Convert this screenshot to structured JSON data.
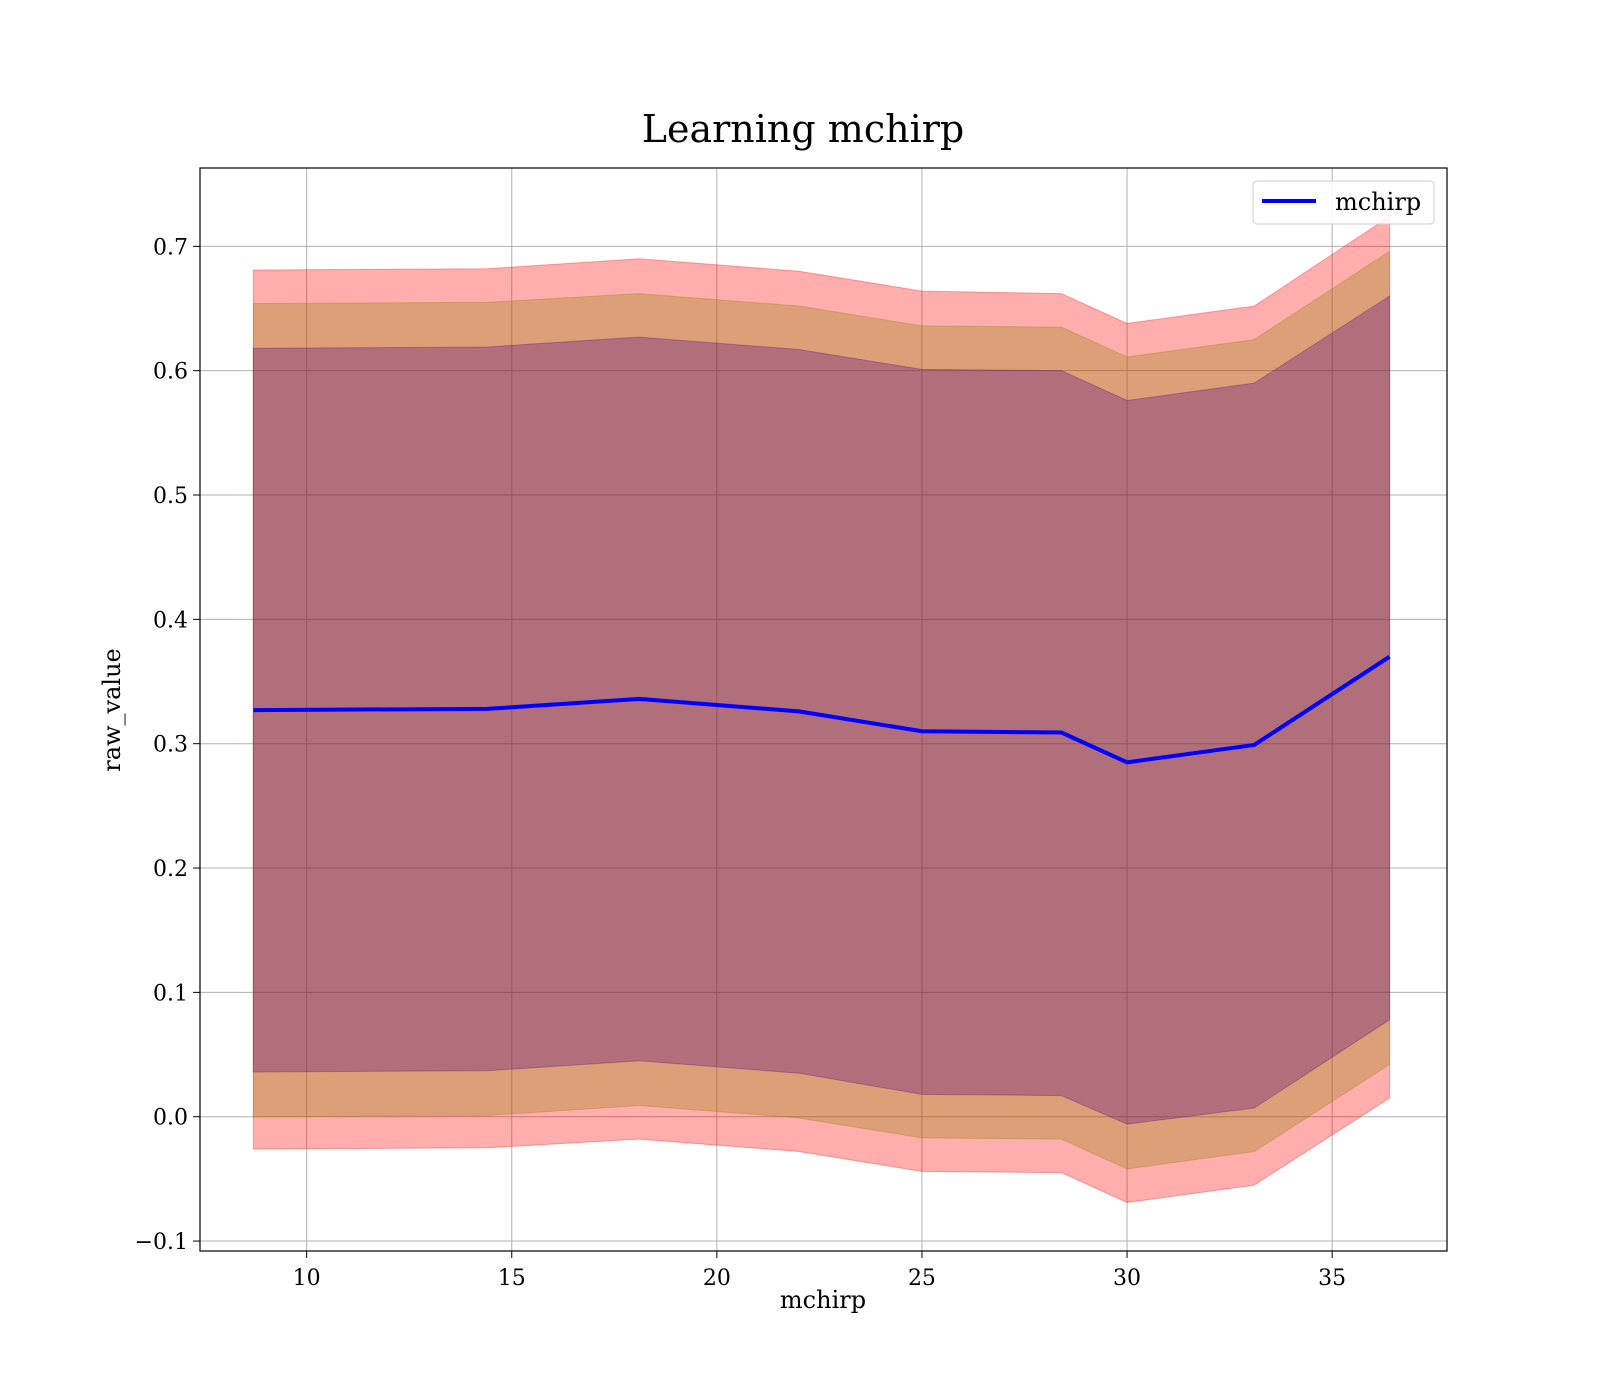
{
  "chart_data": {
    "type": "line",
    "title": "Learning mchirp",
    "xlabel": "mchirp",
    "ylabel": "raw_value",
    "xlim": [
      7.4,
      37.8
    ],
    "ylim": [
      -0.108,
      0.763
    ],
    "xticks": [
      10,
      15,
      20,
      25,
      30,
      35
    ],
    "xtick_labels": [
      "10",
      "15",
      "20",
      "25",
      "30",
      "35"
    ],
    "yticks": [
      -0.1,
      0.0,
      0.1,
      0.2,
      0.3,
      0.4,
      0.5,
      0.6,
      0.7
    ],
    "ytick_labels": [
      "−0.1",
      "0.0",
      "0.1",
      "0.2",
      "0.3",
      "0.4",
      "0.5",
      "0.6",
      "0.7"
    ],
    "grid": true,
    "legend": {
      "position": "top-right"
    },
    "x": [
      8.7,
      14.4,
      18.1,
      22.0,
      25.0,
      28.4,
      30.0,
      33.1,
      36.4
    ],
    "series": [
      {
        "name": "mchirp",
        "color": "#0000ff",
        "values": [
          0.327,
          0.328,
          0.336,
          0.326,
          0.31,
          0.309,
          0.285,
          0.299,
          0.37
        ]
      }
    ],
    "bands": [
      {
        "color": "#ff0000",
        "opacity": 0.32,
        "lower": [
          -0.026,
          -0.025,
          -0.018,
          -0.028,
          -0.044,
          -0.045,
          -0.069,
          -0.055,
          0.015
        ],
        "upper": [
          0.681,
          0.682,
          0.69,
          0.68,
          0.664,
          0.662,
          0.638,
          0.652,
          0.724
        ]
      },
      {
        "color": "#8b8000",
        "opacity": 0.3,
        "lower": [
          0.0,
          0.001,
          0.009,
          -0.001,
          -0.017,
          -0.018,
          -0.042,
          -0.028,
          0.042
        ],
        "upper": [
          0.654,
          0.655,
          0.662,
          0.652,
          0.636,
          0.635,
          0.611,
          0.625,
          0.696
        ]
      },
      {
        "color": "#4b0082",
        "opacity": 0.3,
        "lower": [
          0.036,
          0.037,
          0.045,
          0.035,
          0.018,
          0.017,
          -0.006,
          0.007,
          0.078
        ],
        "upper": [
          0.618,
          0.619,
          0.627,
          0.617,
          0.601,
          0.6,
          0.576,
          0.59,
          0.66
        ]
      }
    ]
  }
}
